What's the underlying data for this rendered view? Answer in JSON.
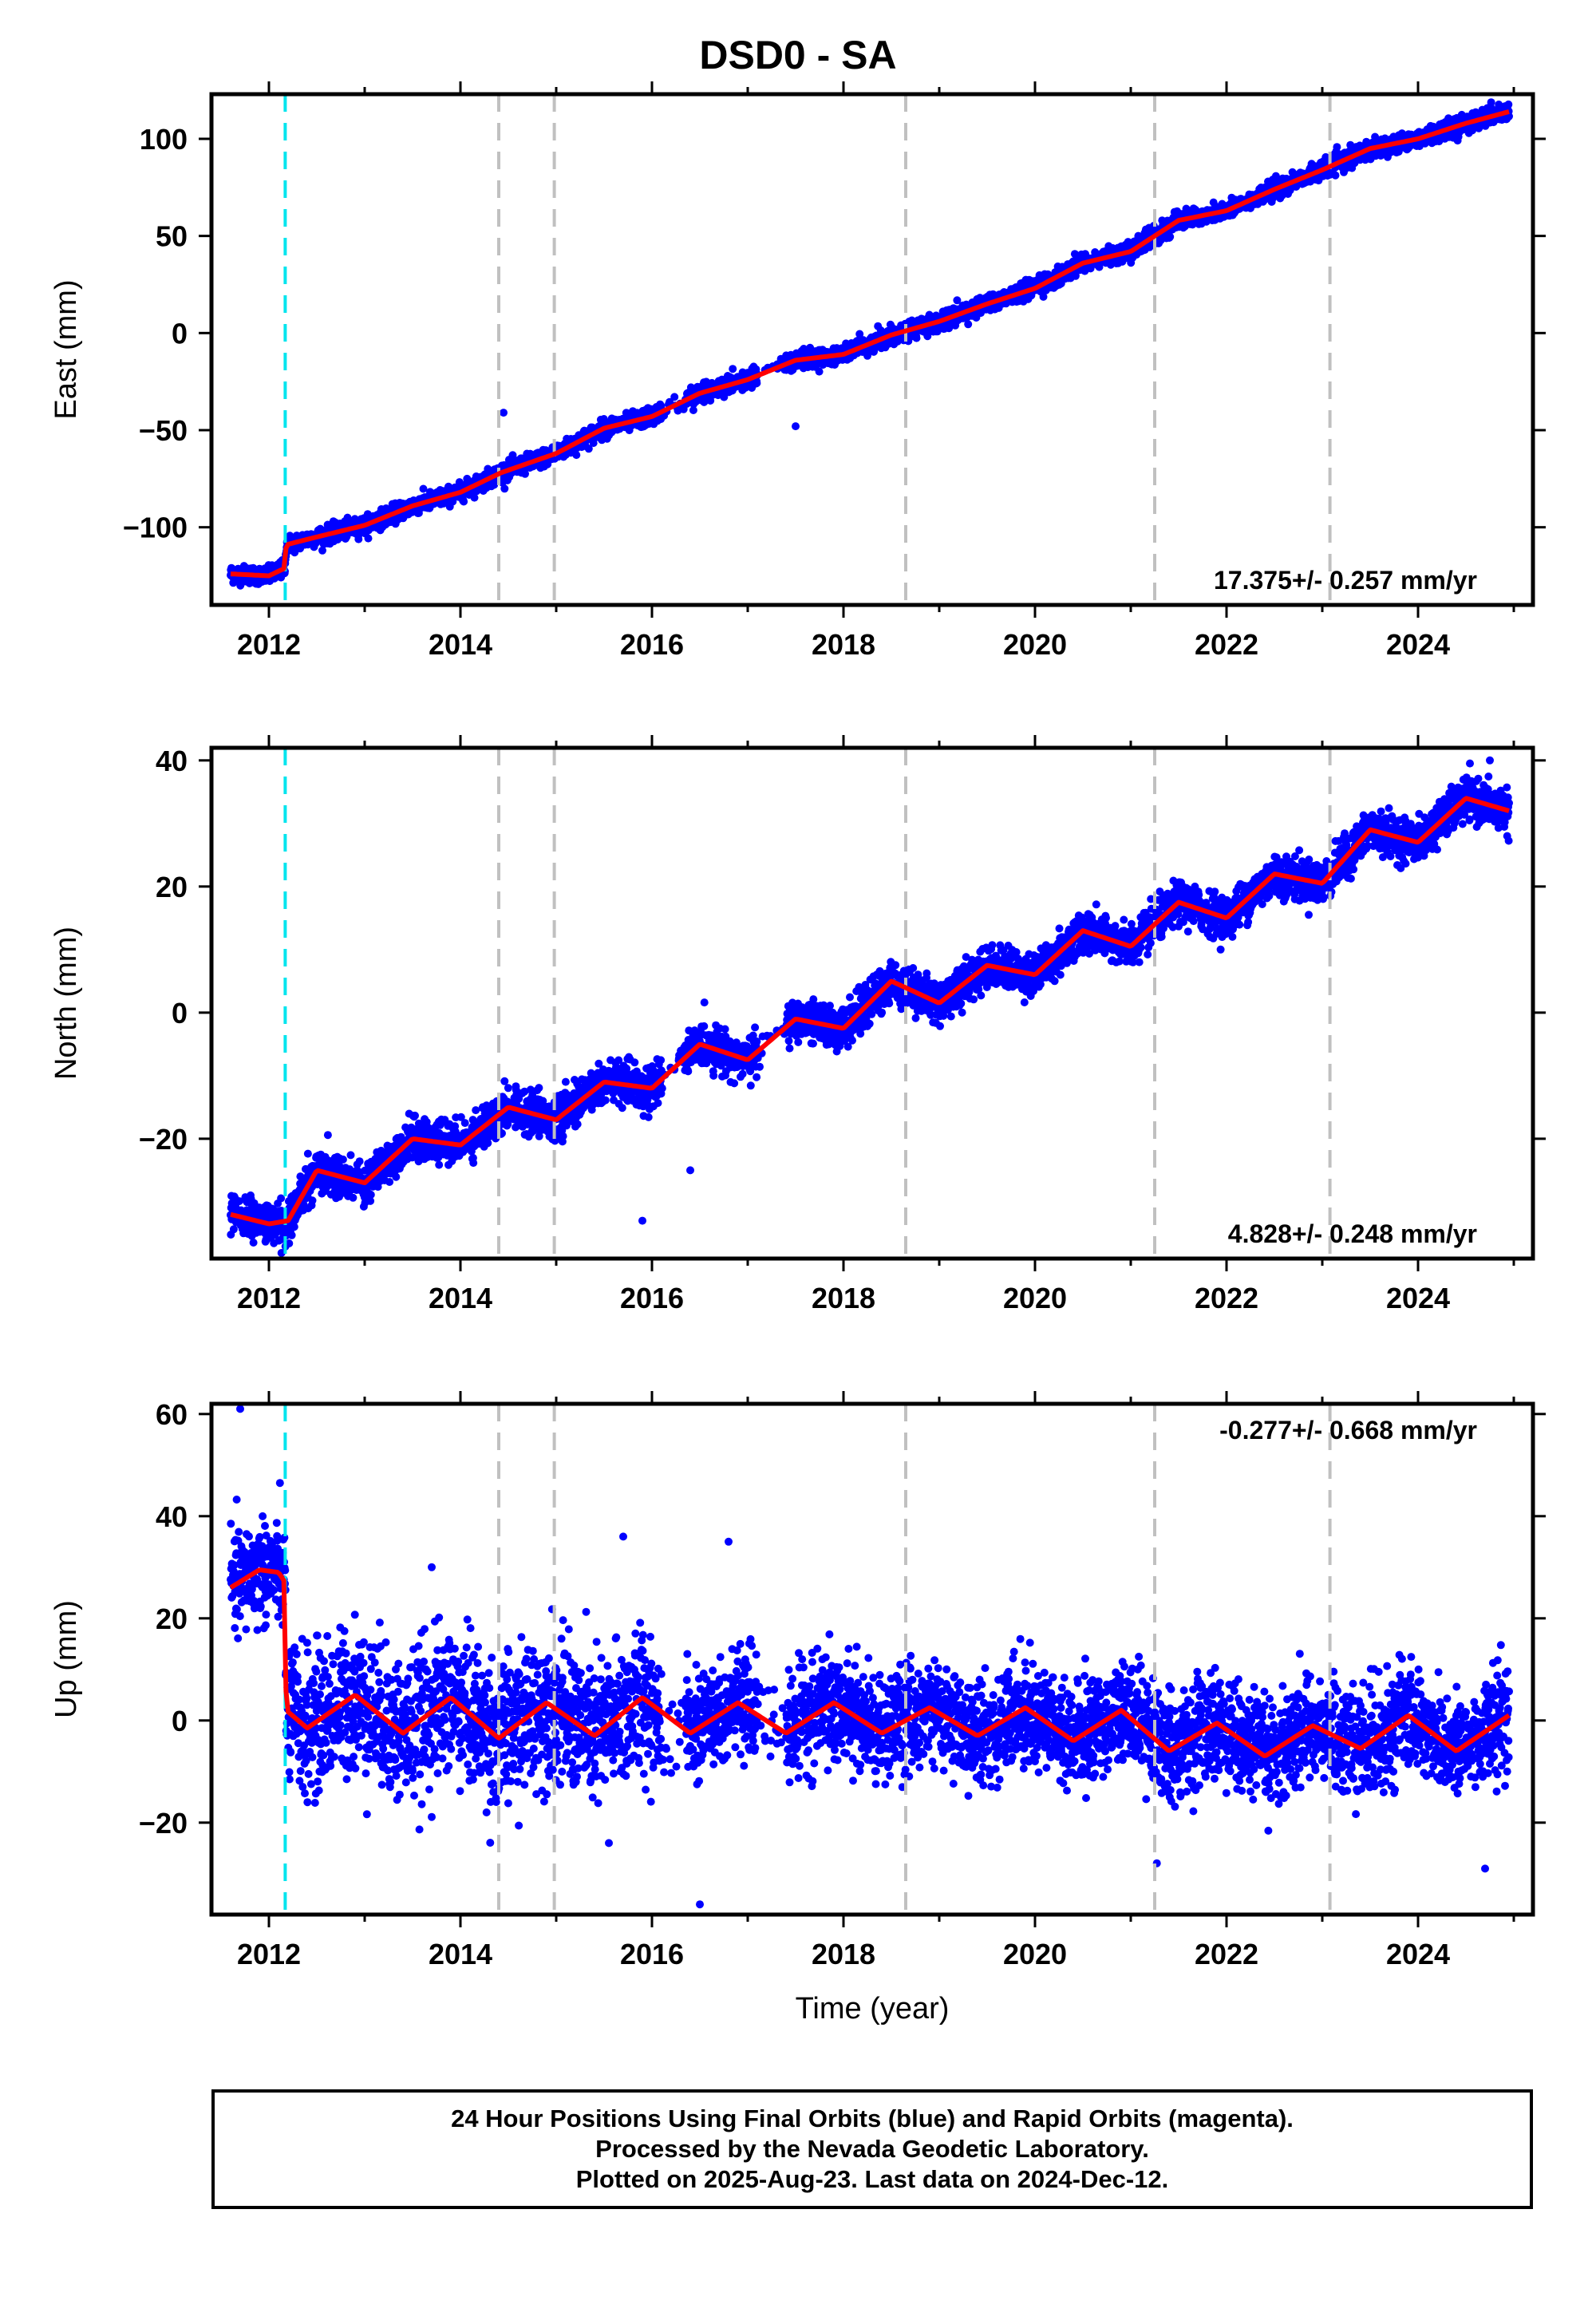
{
  "title": "DSD0 - SA",
  "xlabel": "Time (year)",
  "footer": {
    "line1": "24 Hour Positions Using Final Orbits (blue) and Rapid Orbits (magenta).",
    "line2": "Processed by the Nevada Geodetic Laboratory.",
    "line3": "Plotted on 2025-Aug-23. Last data on 2024-Dec-12."
  },
  "colors": {
    "data_points": "#0000ff",
    "model_line": "#ff0000",
    "equipment_change_line": "#00e5ee",
    "event_lines": "#c0c0c0"
  },
  "chart_data": [
    {
      "type": "scatter",
      "name": "east",
      "ylabel": "East (mm)",
      "xlim": [
        2011.4,
        2025.2
      ],
      "ylim": [
        -140,
        123
      ],
      "xticks": [
        2012,
        2014,
        2016,
        2018,
        2020,
        2022,
        2024
      ],
      "yticks": [
        -100,
        -50,
        0,
        50,
        100
      ],
      "ytick_labels": [
        "−100",
        "−50",
        "0",
        "50",
        "100"
      ],
      "rate_label": "17.375+/- 0.257 mm/yr",
      "rate_position": "bottom-right",
      "data_span": [
        2011.6,
        2024.95
      ],
      "trend": {
        "t0": 2018.0,
        "y0": -13.0,
        "rate": 17.375
      },
      "annual_amplitude": 1.8,
      "annual_phase": 0.2,
      "noise": 2.2,
      "offsets": [
        {
          "t": 2012.17,
          "dy": 13.5
        }
      ],
      "model": {
        "x": [
          2011.6,
          2012.0,
          2012.17,
          2012.18,
          2012.5,
          2013.0,
          2013.5,
          2014.0,
          2014.42,
          2015.0,
          2015.5,
          2016.0,
          2016.5,
          2017.0,
          2017.5,
          2018.0,
          2018.5,
          2019.0,
          2019.5,
          2020.0,
          2020.5,
          2021.0,
          2021.5,
          2022.0,
          2022.5,
          2023.0,
          2023.5,
          2024.0,
          2024.5,
          2024.95
        ],
        "y": [
          -124,
          -125,
          -121,
          -109,
          -105,
          -99,
          -89,
          -82,
          -72,
          -62,
          -49,
          -43,
          -31,
          -24,
          -14,
          -11,
          -1,
          6,
          15,
          23,
          36,
          42,
          58,
          63,
          74,
          84,
          95,
          100,
          108,
          114
        ]
      },
      "outliers": [
        {
          "x": 2017.5,
          "y": -48
        },
        {
          "x": 2014.45,
          "y": -41
        }
      ],
      "event_lines": [
        2014.4,
        2014.98,
        2018.65,
        2021.25,
        2023.08
      ],
      "equipment_lines": [
        2012.17
      ]
    },
    {
      "type": "scatter",
      "name": "north",
      "ylabel": "North (mm)",
      "xlim": [
        2011.4,
        2025.2
      ],
      "ylim": [
        -39,
        42
      ],
      "xticks": [
        2012,
        2014,
        2016,
        2018,
        2020,
        2022,
        2024
      ],
      "yticks": [
        -20,
        0,
        20,
        40
      ],
      "ytick_labels": [
        "−20",
        "0",
        "20",
        "40"
      ],
      "rate_label": "4.828+/- 0.248 mm/yr",
      "rate_position": "bottom-right",
      "data_span": [
        2011.6,
        2024.95
      ],
      "trend": {
        "t0": 2018.0,
        "y0": -2.5,
        "rate": 4.828
      },
      "annual_amplitude": 2.2,
      "annual_phase": 0.6,
      "noise": 1.6,
      "offsets": [
        {
          "t": 2012.17,
          "dy": 0
        }
      ],
      "model": {
        "x": [
          2011.6,
          2012.0,
          2012.2,
          2012.5,
          2013.0,
          2013.5,
          2014.0,
          2014.5,
          2015.0,
          2015.5,
          2016.0,
          2016.5,
          2017.0,
          2017.5,
          2018.0,
          2018.5,
          2019.0,
          2019.5,
          2020.0,
          2020.5,
          2021.0,
          2021.5,
          2022.0,
          2022.5,
          2023.0,
          2023.5,
          2024.0,
          2024.5,
          2024.95
        ],
        "y": [
          -32,
          -33.5,
          -33,
          -25,
          -27,
          -20,
          -21,
          -15,
          -17,
          -11,
          -12,
          -5,
          -7.5,
          -1,
          -2.5,
          5,
          1.5,
          7.5,
          6,
          13,
          10.5,
          17.5,
          15,
          22,
          20.5,
          29,
          27,
          34,
          32
        ]
      },
      "outliers": [
        {
          "x": 2015.9,
          "y": -33
        },
        {
          "x": 2016.4,
          "y": -25
        },
        {
          "x": 2024.75,
          "y": 40
        }
      ],
      "event_lines": [
        2014.4,
        2014.98,
        2018.65,
        2021.25,
        2023.08
      ],
      "equipment_lines": [
        2012.17
      ]
    },
    {
      "type": "scatter",
      "name": "up",
      "ylabel": "Up (mm)",
      "xlim": [
        2011.4,
        2025.2
      ],
      "ylim": [
        -38,
        62
      ],
      "xticks": [
        2012,
        2014,
        2016,
        2018,
        2020,
        2022,
        2024
      ],
      "yticks": [
        -20,
        0,
        20,
        40,
        60
      ],
      "ytick_labels": [
        "−20",
        "0",
        "20",
        "40",
        "60"
      ],
      "rate_label": "-0.277+/- 0.668 mm/yr",
      "rate_position": "top-right",
      "data_span": [
        2011.6,
        2024.95
      ],
      "trend": {
        "t0": 2018.0,
        "y0": 0.0,
        "rate": -0.277
      },
      "annual_amplitude": 3.5,
      "annual_phase": 0.35,
      "noise": 5.0,
      "offsets": [
        {
          "t": 2012.17,
          "dy": -27
        }
      ],
      "model": {
        "x": [
          2011.6,
          2011.9,
          2012.1,
          2012.17,
          2012.18,
          2012.4,
          2012.9,
          2013.4,
          2013.9,
          2014.4,
          2014.9,
          2015.4,
          2015.9,
          2016.4,
          2016.9,
          2017.4,
          2017.9,
          2018.4,
          2018.9,
          2019.4,
          2019.9,
          2020.4,
          2020.9,
          2021.4,
          2021.9,
          2022.4,
          2022.9,
          2023.4,
          2023.9,
          2024.4,
          2024.95
        ],
        "y": [
          26,
          29.5,
          29,
          27,
          2,
          -1.5,
          5,
          -2.5,
          4.5,
          -3.5,
          3.5,
          -3,
          4.5,
          -2.5,
          3.5,
          -2.5,
          3.5,
          -2.5,
          2.5,
          -3,
          2.5,
          -4,
          2,
          -6,
          -0.5,
          -7,
          -1,
          -5.5,
          1,
          -6,
          1
        ]
      },
      "outliers": [
        {
          "x": 2011.7,
          "y": 61
        },
        {
          "x": 2016.5,
          "y": -36
        },
        {
          "x": 2016.8,
          "y": 35
        },
        {
          "x": 2015.7,
          "y": 36
        },
        {
          "x": 2013.7,
          "y": 30
        },
        {
          "x": 2024.7,
          "y": -29
        },
        {
          "x": 2015.55,
          "y": -24
        }
      ],
      "event_lines": [
        2014.4,
        2014.98,
        2018.65,
        2021.25,
        2023.08
      ],
      "equipment_lines": [
        2012.17
      ]
    }
  ]
}
